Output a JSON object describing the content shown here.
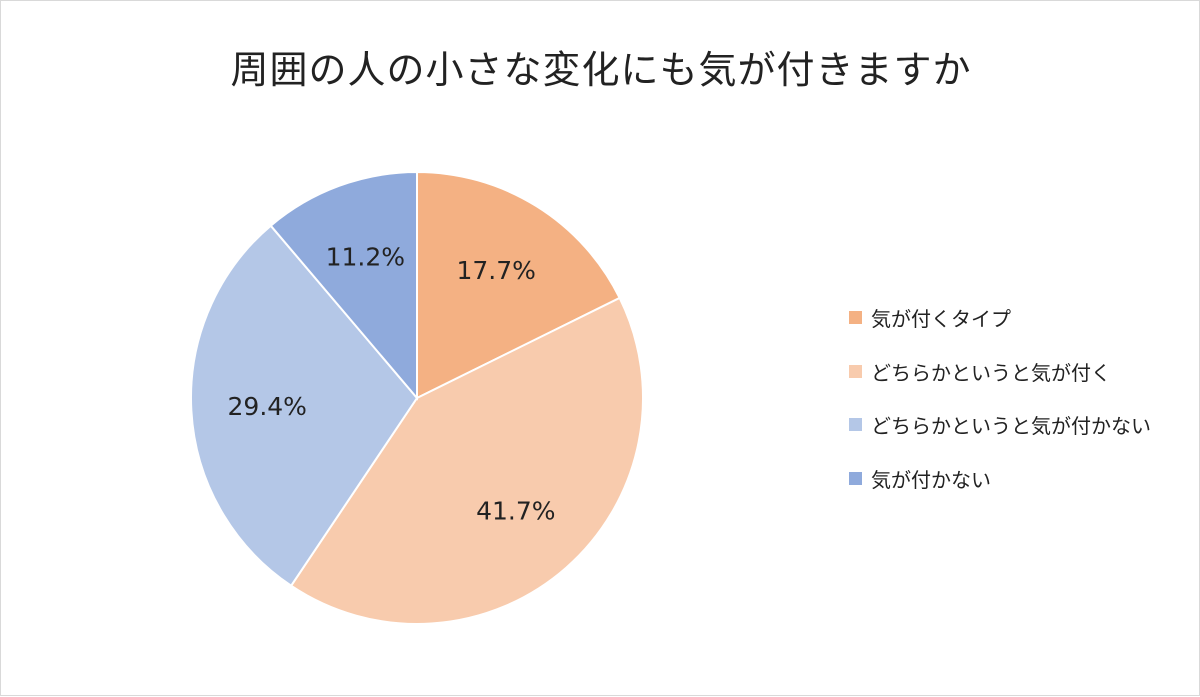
{
  "chart_data": {
    "type": "pie",
    "title": "周囲の人の小さな変化にも気が付きますか",
    "categories": [
      "気が付くタイプ",
      "どちらかというと気が付く",
      "どちらかというと気が付かない",
      "気が付かない"
    ],
    "values": [
      17.7,
      41.7,
      29.4,
      11.2
    ],
    "value_labels": [
      "17.7%",
      "41.7%",
      "29.4%",
      "11.2%"
    ],
    "colors": [
      "#F4B183",
      "#F8CBAD",
      "#B4C7E7",
      "#8FAADC"
    ],
    "legend_position": "right"
  }
}
